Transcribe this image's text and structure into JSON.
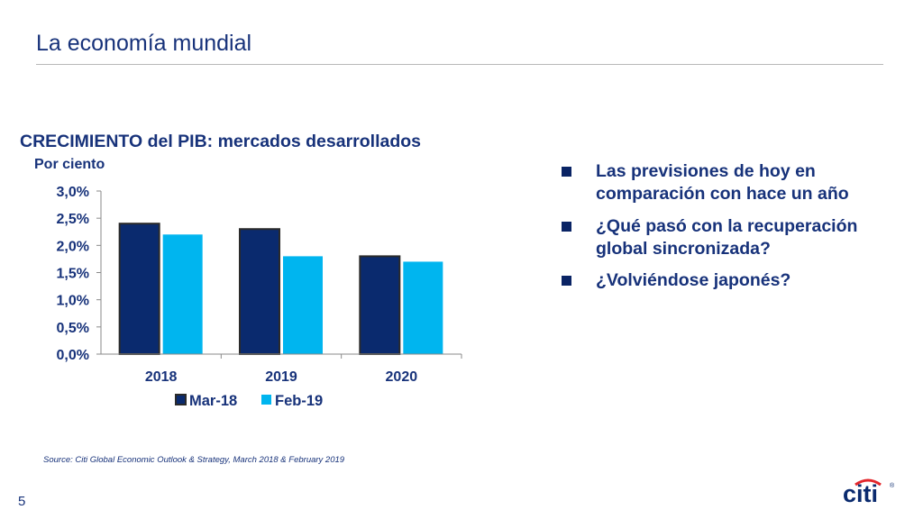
{
  "slide": {
    "title": "La economía mundial",
    "bullets": [
      "Las previsiones de hoy en comparación con hace un año",
      "¿Qué pasó con la recuperación global sincronizada?",
      "¿Volviéndose japonés?"
    ],
    "source": "Source: Citi Global Economic Outlook & Strategy, March 2018 & February 2019",
    "page_number": "5",
    "logo_text": "citi",
    "logo_mark": "®"
  },
  "chart_data": {
    "type": "bar",
    "title": "CRECIMIENTO del PIB: mercados desarrollados",
    "subtitle": "Por ciento",
    "categories": [
      "2018",
      "2019",
      "2020"
    ],
    "series": [
      {
        "name": "Mar-18",
        "values": [
          2.4,
          2.3,
          1.8
        ],
        "color": "#0a2a6e"
      },
      {
        "name": "Feb-19",
        "values": [
          2.2,
          1.8,
          1.7
        ],
        "color": "#00b5ef"
      }
    ],
    "ylim": [
      0,
      3
    ],
    "yticks": [
      0,
      0.5,
      1.0,
      1.5,
      2.0,
      2.5,
      3.0
    ],
    "ytick_labels": [
      "0,0%",
      "0,5%",
      "1,0%",
      "1,5%",
      "2,0%",
      "2,5%",
      "3,0%"
    ],
    "legend_position": "bottom",
    "grid": false
  },
  "colors": {
    "text": "#17327a",
    "logo_blue": "#0a2a6e",
    "logo_red": "#e3272c"
  }
}
